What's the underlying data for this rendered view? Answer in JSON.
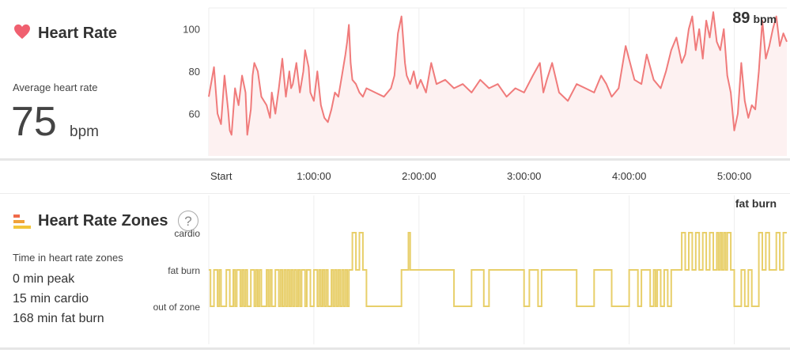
{
  "heart_rate": {
    "title": "Heart Rate",
    "avg_label": "Average heart rate",
    "avg_value": "75",
    "avg_unit": "bpm",
    "current_value": "89",
    "current_unit": "bpm"
  },
  "zones": {
    "title": "Heart Rate Zones",
    "help": "?",
    "subtitle": "Time in heart rate zones",
    "stats": [
      "0 min peak",
      "15 min cardio",
      "168 min fat burn"
    ],
    "current_zone": "fat burn"
  },
  "colors": {
    "line": "#f07b7b",
    "fill": "#fdf1f1",
    "zone": "#e8cf6a",
    "heart": "#f06070"
  },
  "chart_data": [
    {
      "type": "line",
      "ylim": [
        40,
        110
      ],
      "yticks": [
        60,
        80,
        100
      ],
      "xlim": [
        0,
        330
      ],
      "xtick_labels": [
        "Start",
        "1:00:00",
        "2:00:00",
        "3:00:00",
        "4:00:00",
        "5:00:00"
      ],
      "xticks": [
        0,
        60,
        120,
        180,
        240,
        300
      ],
      "x_unit": "minutes",
      "grid": true,
      "series": [
        {
          "x": [
            0,
            3,
            5,
            7,
            9,
            11,
            12,
            13,
            15,
            17,
            19,
            21,
            22,
            24,
            25,
            26,
            28,
            30,
            33,
            35,
            36,
            38,
            40,
            42,
            44,
            46,
            47,
            48,
            50,
            52,
            54,
            55,
            57,
            58,
            60,
            62,
            64,
            66,
            68,
            70,
            72,
            74,
            76,
            78,
            79,
            80,
            81,
            82,
            84,
            86,
            88,
            90,
            95,
            100,
            104,
            106,
            108,
            110,
            112,
            113,
            114,
            115,
            117,
            119,
            121,
            124,
            127,
            130,
            135,
            140,
            145,
            150,
            155,
            160,
            165,
            170,
            175,
            180,
            185,
            189,
            191,
            193,
            196,
            200,
            205,
            210,
            215,
            220,
            224,
            227,
            230,
            234,
            238,
            243,
            247,
            250,
            254,
            258,
            261,
            264,
            267,
            270,
            272,
            274,
            276,
            278,
            280,
            282,
            284,
            286,
            288,
            290,
            292,
            294,
            296,
            298,
            300,
            302,
            304,
            306,
            308,
            310,
            312,
            314,
            316,
            318,
            320,
            322,
            324,
            326,
            328,
            330
          ],
          "y": [
            68,
            82,
            60,
            55,
            78,
            62,
            52,
            50,
            72,
            64,
            78,
            70,
            50,
            62,
            78,
            84,
            80,
            68,
            64,
            58,
            70,
            60,
            72,
            86,
            68,
            80,
            72,
            74,
            84,
            70,
            80,
            90,
            82,
            70,
            66,
            80,
            64,
            58,
            56,
            62,
            70,
            68,
            78,
            88,
            94,
            102,
            84,
            76,
            74,
            70,
            68,
            72,
            70,
            68,
            72,
            78,
            98,
            106,
            84,
            78,
            76,
            74,
            80,
            72,
            76,
            70,
            84,
            74,
            76,
            72,
            74,
            70,
            76,
            72,
            74,
            68,
            72,
            70,
            78,
            84,
            70,
            76,
            84,
            70,
            66,
            74,
            72,
            70,
            78,
            74,
            68,
            72,
            92,
            76,
            74,
            88,
            76,
            72,
            80,
            90,
            96,
            84,
            88,
            100,
            106,
            90,
            100,
            86,
            104,
            96,
            108,
            94,
            90,
            100,
            78,
            70,
            52,
            60,
            84,
            66,
            58,
            64,
            62,
            80,
            104,
            86,
            92,
            100,
            106,
            92,
            98,
            94
          ]
        }
      ]
    },
    {
      "type": "line",
      "categories": [
        "out of zone",
        "fat burn",
        "cardio"
      ],
      "xlim": [
        0,
        330
      ],
      "x_unit": "minutes",
      "series": [
        {
          "x": [
            0,
            1,
            3,
            5,
            6,
            7,
            8,
            10,
            12,
            14,
            15,
            16,
            18,
            19,
            20,
            21,
            22,
            24,
            26,
            27,
            28,
            29,
            30,
            32,
            33,
            34,
            35,
            36,
            38,
            40,
            41,
            42,
            43,
            44,
            45,
            46,
            47,
            48,
            49,
            50,
            51,
            52,
            53,
            55,
            56,
            58,
            60,
            62,
            63,
            64,
            65,
            66,
            67,
            68,
            70,
            71,
            72,
            73,
            74,
            75,
            76,
            77,
            78,
            79,
            80,
            82,
            84,
            86,
            88,
            90,
            100,
            110,
            114,
            115,
            116,
            117,
            119,
            120,
            121,
            125,
            130,
            140,
            150,
            155,
            157,
            160,
            170,
            180,
            183,
            185,
            188,
            190,
            200,
            210,
            220,
            224,
            230,
            240,
            243,
            245,
            247,
            250,
            252,
            254,
            255,
            256,
            258,
            260,
            262,
            264,
            266,
            268,
            270,
            272,
            274,
            276,
            278,
            280,
            282,
            284,
            286,
            288,
            290,
            291,
            292,
            293,
            294,
            295,
            296,
            298,
            300,
            302,
            303,
            304,
            306,
            308,
            310,
            312,
            314,
            316,
            318,
            320,
            322,
            324,
            326,
            328,
            330
          ],
          "y": [
            1,
            0,
            1,
            0,
            1,
            0,
            0,
            1,
            0,
            1,
            0,
            1,
            0,
            1,
            0,
            1,
            0,
            1,
            0,
            1,
            0,
            1,
            0,
            0,
            1,
            0,
            1,
            0,
            1,
            0,
            1,
            0,
            1,
            0,
            1,
            0,
            1,
            0,
            1,
            0,
            1,
            0,
            1,
            0,
            1,
            0,
            1,
            0,
            1,
            0,
            1,
            0,
            1,
            0,
            1,
            0,
            1,
            0,
            1,
            0,
            1,
            0,
            1,
            0,
            1,
            2,
            1,
            2,
            1,
            0,
            0,
            1,
            2,
            1,
            1,
            1,
            1,
            1,
            1,
            1,
            1,
            0,
            1,
            1,
            0,
            1,
            1,
            0,
            1,
            1,
            0,
            1,
            1,
            0,
            1,
            1,
            0,
            1,
            1,
            0,
            1,
            1,
            0,
            1,
            0,
            1,
            0,
            1,
            0,
            1,
            1,
            1,
            2,
            1,
            2,
            1,
            2,
            1,
            2,
            1,
            2,
            1,
            2,
            1,
            2,
            1,
            2,
            1,
            2,
            1,
            0,
            0,
            0,
            1,
            0,
            1,
            0,
            0,
            2,
            1,
            2,
            1,
            1,
            2,
            1,
            2,
            2
          ]
        }
      ]
    }
  ]
}
